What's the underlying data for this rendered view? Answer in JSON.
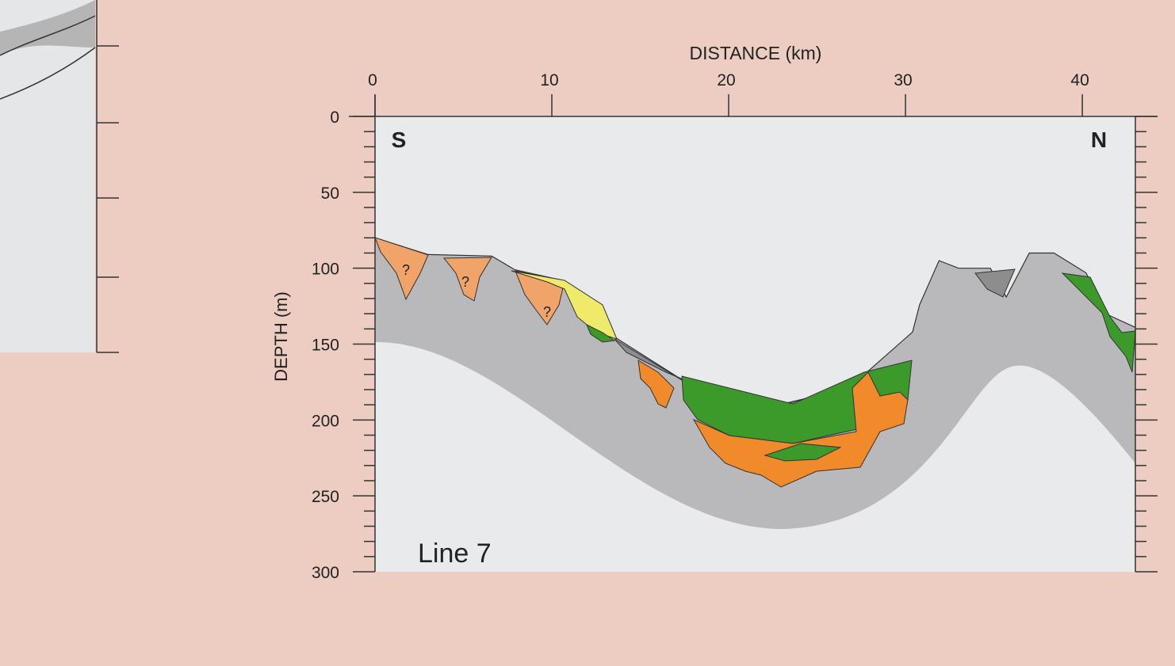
{
  "chart_data": {
    "type": "cross-section",
    "x_label": "DISTANCE (km)",
    "y_label": "DEPTH (m)",
    "xlim": [
      0,
      43
    ],
    "ylim": [
      0,
      300
    ],
    "xticks": [
      0,
      10,
      20,
      30,
      40
    ],
    "yticks": [
      0,
      50,
      100,
      150,
      200,
      250,
      300
    ],
    "yminor_ticks": [
      10,
      20,
      30,
      40,
      60,
      70,
      80,
      90,
      110,
      120,
      130,
      140,
      160,
      170,
      180,
      190,
      210,
      220,
      230,
      240,
      260,
      270,
      280,
      290
    ],
    "x": [
      0,
      3,
      6.6,
      7.9,
      10.6,
      13.5,
      17.3,
      23.2,
      26.8,
      30.4,
      30.8,
      31.9,
      33,
      34.8,
      35.7,
      37,
      38.4,
      40.2,
      41.5,
      43
    ],
    "values": [
      80,
      91,
      92,
      101,
      108,
      145,
      173,
      189,
      179,
      142,
      124,
      95,
      100,
      100,
      119,
      90,
      90,
      103,
      131,
      139
    ],
    "annotations": [
      "S",
      "N",
      "Line 7",
      "?",
      "?",
      "?"
    ]
  }
}
